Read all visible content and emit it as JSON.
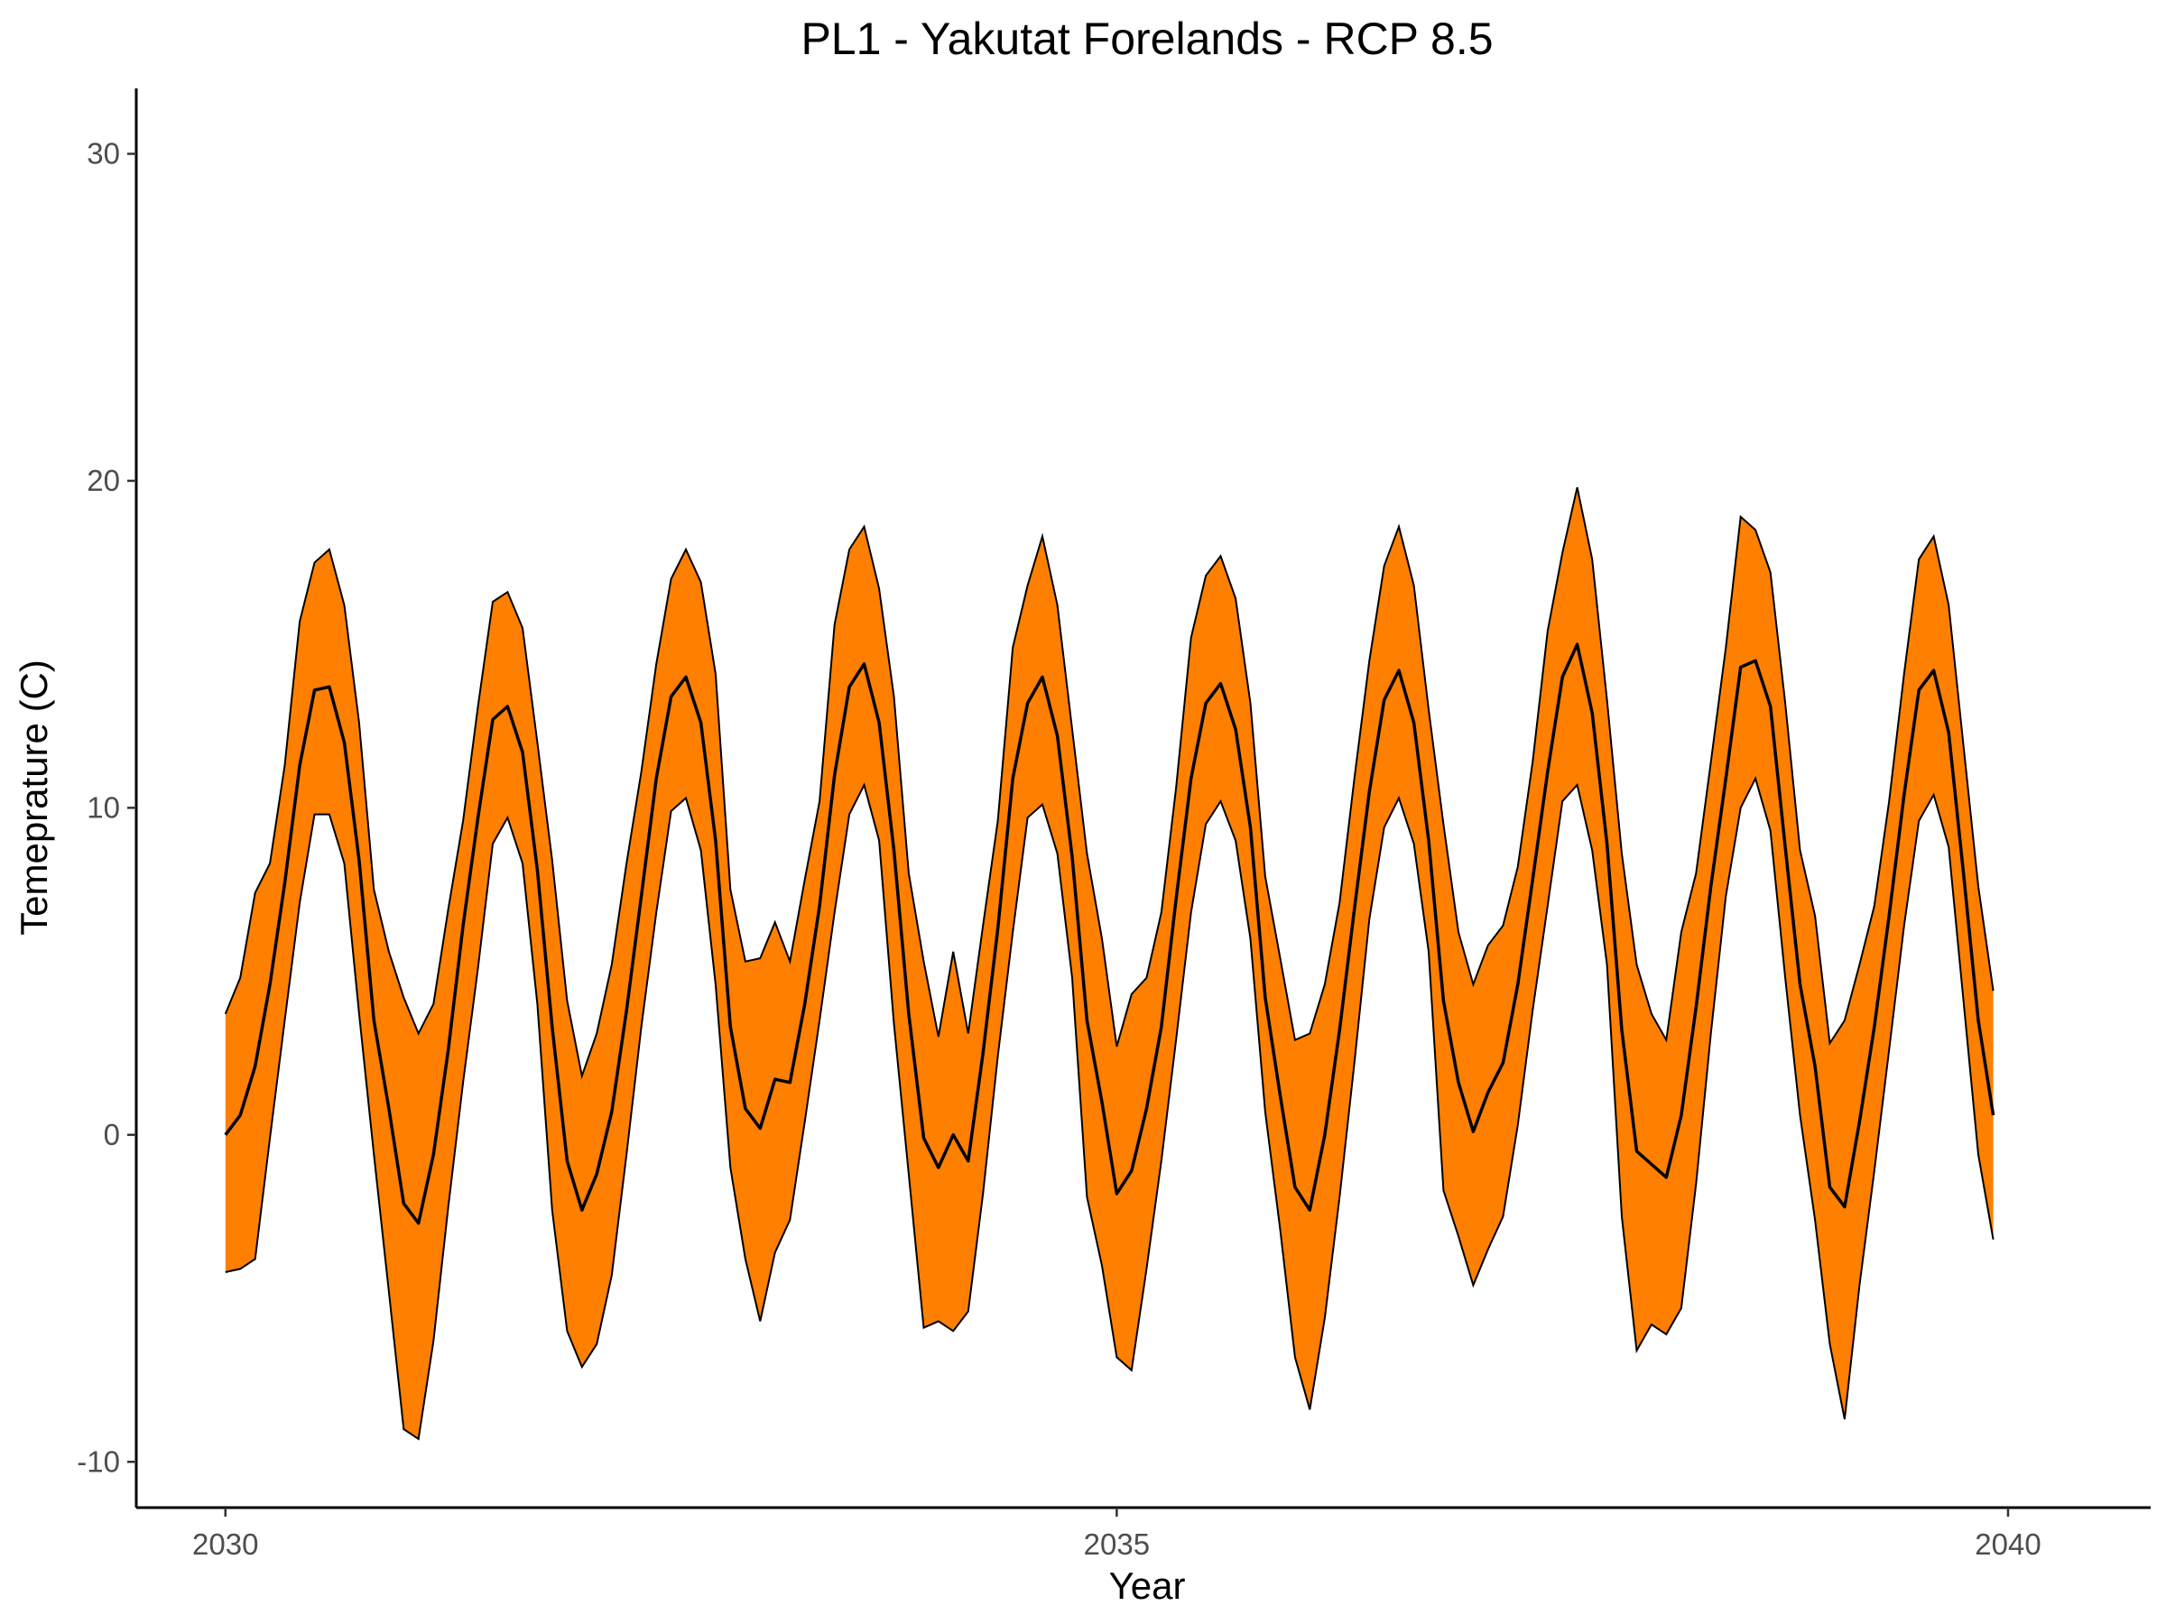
{
  "chart_data": {
    "type": "area",
    "title": "PL1 - Yakutat Forelands - RCP 8.5",
    "xlabel": "Year",
    "ylabel": "Temeprature (C)",
    "xlim": [
      2029.5,
      2040.8
    ],
    "ylim": [
      -11.4,
      32
    ],
    "xticks": [
      2030,
      2035,
      2040
    ],
    "yticks": [
      -10,
      0,
      10,
      20,
      30
    ],
    "grid": false,
    "legend": "none",
    "colors": {
      "band_fill": "#ff7f00",
      "band_outline": "#000000",
      "mean_line": "#000000"
    },
    "x": [
      2030.0,
      2030.083,
      2030.167,
      2030.25,
      2030.333,
      2030.417,
      2030.5,
      2030.583,
      2030.667,
      2030.75,
      2030.833,
      2030.917,
      2031.0,
      2031.083,
      2031.167,
      2031.25,
      2031.333,
      2031.417,
      2031.5,
      2031.583,
      2031.667,
      2031.75,
      2031.833,
      2031.917,
      2032.0,
      2032.083,
      2032.167,
      2032.25,
      2032.333,
      2032.417,
      2032.5,
      2032.583,
      2032.667,
      2032.75,
      2032.833,
      2032.917,
      2033.0,
      2033.083,
      2033.167,
      2033.25,
      2033.333,
      2033.417,
      2033.5,
      2033.583,
      2033.667,
      2033.75,
      2033.833,
      2033.917,
      2034.0,
      2034.083,
      2034.167,
      2034.25,
      2034.333,
      2034.417,
      2034.5,
      2034.583,
      2034.667,
      2034.75,
      2034.833,
      2034.917,
      2035.0,
      2035.083,
      2035.167,
      2035.25,
      2035.333,
      2035.417,
      2035.5,
      2035.583,
      2035.667,
      2035.75,
      2035.833,
      2035.917,
      2036.0,
      2036.083,
      2036.167,
      2036.25,
      2036.333,
      2036.417,
      2036.5,
      2036.583,
      2036.667,
      2036.75,
      2036.833,
      2036.917,
      2037.0,
      2037.083,
      2037.167,
      2037.25,
      2037.333,
      2037.417,
      2037.5,
      2037.583,
      2037.667,
      2037.75,
      2037.833,
      2037.917,
      2038.0,
      2038.083,
      2038.167,
      2038.25,
      2038.333,
      2038.417,
      2038.5,
      2038.583,
      2038.667,
      2038.75,
      2038.833,
      2038.917,
      2039.0,
      2039.083,
      2039.167,
      2039.25,
      2039.333,
      2039.417,
      2039.5,
      2039.583,
      2039.667,
      2039.75,
      2039.833,
      2039.917
    ],
    "series": [
      {
        "role": "upper",
        "values": [
          3.7,
          4.8,
          7.4,
          8.3,
          11.3,
          15.7,
          17.5,
          17.9,
          16.2,
          12.6,
          7.5,
          5.6,
          4.2,
          3.1,
          4.0,
          6.9,
          9.6,
          13.1,
          16.3,
          16.6,
          15.5,
          12.0,
          8.4,
          4.1,
          1.8,
          3.1,
          5.2,
          8.3,
          11.1,
          14.4,
          17.0,
          17.9,
          16.9,
          14.1,
          7.5,
          5.3,
          5.4,
          6.5,
          5.3,
          7.8,
          10.2,
          15.6,
          17.9,
          18.6,
          16.7,
          13.4,
          8.0,
          5.3,
          3.0,
          5.6,
          3.1,
          6.4,
          9.6,
          14.9,
          16.8,
          18.3,
          16.2,
          12.4,
          8.6,
          6.0,
          2.7,
          4.3,
          4.8,
          6.8,
          10.6,
          15.2,
          17.1,
          17.7,
          16.4,
          13.2,
          7.9,
          5.4,
          2.9,
          3.1,
          4.6,
          7.1,
          10.9,
          14.5,
          17.4,
          18.6,
          16.8,
          13.0,
          9.5,
          6.2,
          4.6,
          5.8,
          6.4,
          8.2,
          11.4,
          15.4,
          17.8,
          19.8,
          17.6,
          13.3,
          8.6,
          5.2,
          3.7,
          2.9,
          6.2,
          8.0,
          11.4,
          14.9,
          18.9,
          18.5,
          17.2,
          13.2,
          8.7,
          6.7,
          2.8,
          3.5,
          5.2,
          7.0,
          10.2,
          14.1,
          17.6,
          18.3,
          16.2,
          11.9,
          7.6,
          4.4
        ]
      },
      {
        "name": "",
        "role": "mean",
        "values": [
          0.0,
          0.6,
          2.1,
          4.6,
          7.7,
          11.3,
          13.6,
          13.7,
          12.0,
          8.4,
          3.5,
          0.8,
          -2.1,
          -2.7,
          -0.6,
          2.6,
          6.4,
          9.7,
          12.7,
          13.1,
          11.7,
          8.1,
          3.3,
          -0.8,
          -2.3,
          -1.2,
          0.7,
          3.8,
          7.3,
          10.9,
          13.4,
          14.0,
          12.6,
          9.0,
          3.3,
          0.8,
          0.2,
          1.7,
          1.6,
          4.0,
          7.0,
          11.0,
          13.7,
          14.4,
          12.6,
          8.7,
          3.7,
          -0.1,
          -1.0,
          0.0,
          -0.8,
          2.5,
          6.3,
          10.9,
          13.2,
          14.0,
          12.2,
          8.5,
          3.5,
          1.0,
          -1.8,
          -1.1,
          0.8,
          3.3,
          7.2,
          10.9,
          13.2,
          13.8,
          12.4,
          9.4,
          4.2,
          1.2,
          -1.6,
          -2.3,
          0.0,
          3.2,
          6.9,
          10.5,
          13.3,
          14.2,
          12.6,
          9.0,
          4.1,
          1.6,
          0.1,
          1.3,
          2.2,
          4.6,
          7.8,
          11.1,
          14.0,
          15.0,
          12.9,
          8.9,
          3.2,
          -0.5,
          -0.9,
          -1.3,
          0.6,
          3.9,
          7.6,
          10.9,
          14.3,
          14.5,
          13.1,
          8.8,
          4.6,
          2.1,
          -1.6,
          -2.2,
          0.4,
          3.3,
          6.7,
          10.4,
          13.6,
          14.2,
          12.3,
          8.0,
          3.5,
          0.6
        ]
      },
      {
        "role": "lower",
        "values": [
          -4.2,
          -4.1,
          -3.8,
          -0.1,
          3.5,
          7.1,
          9.8,
          9.8,
          8.3,
          3.7,
          -0.6,
          -4.8,
          -9.0,
          -9.3,
          -6.3,
          -2.2,
          1.6,
          5.1,
          8.9,
          9.7,
          8.3,
          4.0,
          -2.3,
          -6.0,
          -7.1,
          -6.4,
          -4.3,
          -0.6,
          3.3,
          6.8,
          9.9,
          10.3,
          8.7,
          4.6,
          -1.0,
          -3.8,
          -5.7,
          -3.6,
          -2.6,
          0.4,
          3.5,
          6.8,
          9.8,
          10.7,
          9.0,
          3.4,
          -1.2,
          -5.9,
          -5.7,
          -6.0,
          -5.4,
          -1.8,
          2.4,
          6.2,
          9.7,
          10.1,
          8.6,
          4.8,
          -1.9,
          -4.0,
          -6.8,
          -7.2,
          -4.1,
          -0.8,
          2.9,
          6.8,
          9.5,
          10.2,
          9.0,
          6.0,
          0.7,
          -2.9,
          -6.8,
          -8.4,
          -5.6,
          -1.9,
          2.2,
          6.6,
          9.4,
          10.3,
          8.9,
          5.6,
          -1.7,
          -3.1,
          -4.6,
          -3.5,
          -2.5,
          0.3,
          3.8,
          7.0,
          10.2,
          10.7,
          8.7,
          5.2,
          -2.5,
          -6.6,
          -5.8,
          -6.1,
          -5.3,
          -1.5,
          3.1,
          7.3,
          10.0,
          10.9,
          9.3,
          4.8,
          0.6,
          -2.6,
          -6.4,
          -8.7,
          -4.6,
          -1.1,
          2.6,
          6.4,
          9.6,
          10.4,
          8.8,
          4.1,
          -0.6,
          -3.2
        ]
      }
    ]
  }
}
